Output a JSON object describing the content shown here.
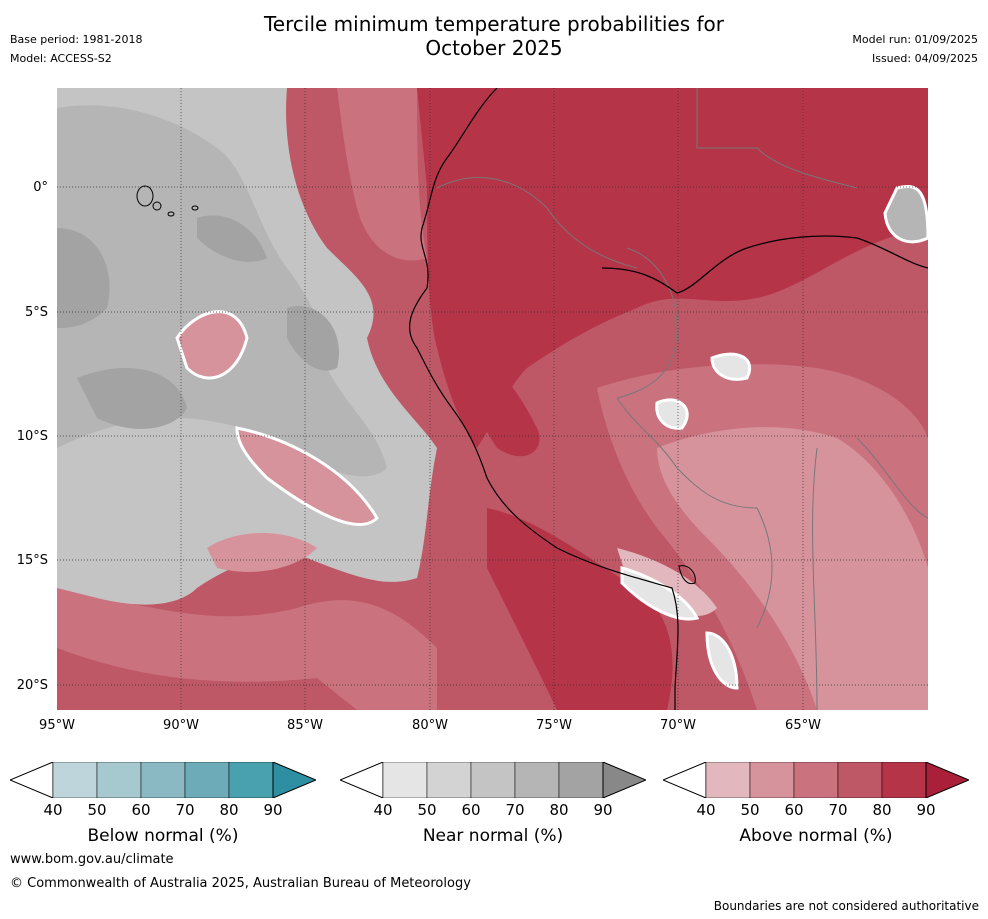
{
  "header": {
    "title_line1": "Tercile minimum temperature probabilities for",
    "title_line2": "October 2025",
    "base_period": "Base period: 1981-2018",
    "model": "Model: ACCESS-S2",
    "model_run": "Model run: 01/09/2025",
    "issued": "Issued: 04/09/2025"
  },
  "map": {
    "lat_labels": [
      "0°",
      "5°S",
      "10°S",
      "15°S",
      "20°S"
    ],
    "lon_labels": [
      "95°W",
      "90°W",
      "85°W",
      "80°W",
      "75°W",
      "70°W",
      "65°W"
    ]
  },
  "colorbars": [
    {
      "title": "Below normal (%)",
      "ticks": [
        "40",
        "50",
        "60",
        "70",
        "80",
        "90"
      ],
      "colors": [
        "#bed5db",
        "#a6c8cf",
        "#8ab8c3",
        "#6cabb7",
        "#49a1b0",
        "#2e8ea2"
      ]
    },
    {
      "title": "Near normal (%)",
      "ticks": [
        "40",
        "50",
        "60",
        "70",
        "80",
        "90"
      ],
      "colors": [
        "#e5e5e5",
        "#d3d3d3",
        "#c4c4c4",
        "#b5b5b5",
        "#a3a3a3",
        "#888888"
      ]
    },
    {
      "title": "Above normal (%)",
      "ticks": [
        "40",
        "50",
        "60",
        "70",
        "80",
        "90"
      ],
      "colors": [
        "#e2b7bd",
        "#d6939c",
        "#ca727e",
        "#bf5866",
        "#b63448",
        "#aa1f3a"
      ]
    }
  ],
  "footer": {
    "url": "www.bom.gov.au/climate",
    "copyright": "© Commonwealth of Australia 2025, Australian Bureau of Meteorology",
    "disclaimer": "Boundaries are not considered authoritative"
  }
}
